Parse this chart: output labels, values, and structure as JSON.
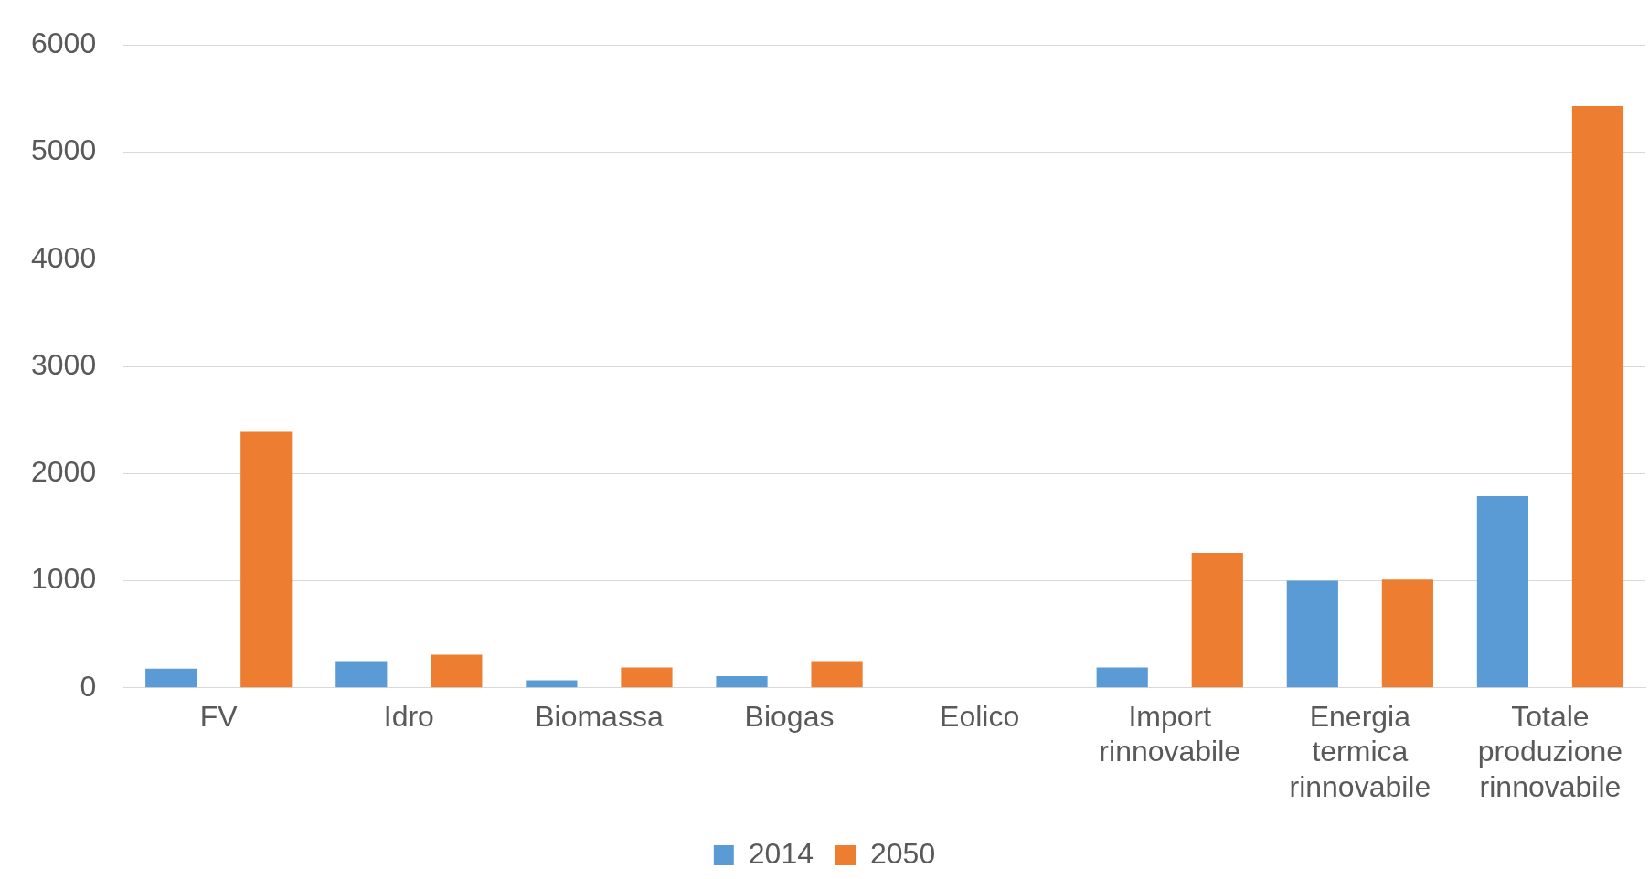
{
  "chart_data": {
    "type": "bar",
    "categories": [
      "FV",
      "Idro",
      "Biomassa",
      "Biogas",
      "Eolico",
      "Import rinnovabile",
      "Energia termica rinnovabile",
      "Totale produzione rinnovabile"
    ],
    "series": [
      {
        "name": "2014",
        "color": "#5b9bd5",
        "values": [
          180,
          250,
          70,
          110,
          null,
          190,
          1000,
          1790
        ]
      },
      {
        "name": "2050",
        "color": "#ed7d31",
        "values": [
          2390,
          310,
          190,
          250,
          null,
          1260,
          1010,
          5430
        ]
      }
    ],
    "ylim": [
      0,
      6000
    ],
    "yticks": [
      0,
      1000,
      2000,
      3000,
      4000,
      5000,
      6000
    ],
    "grid": "y",
    "legend": "bottom"
  }
}
